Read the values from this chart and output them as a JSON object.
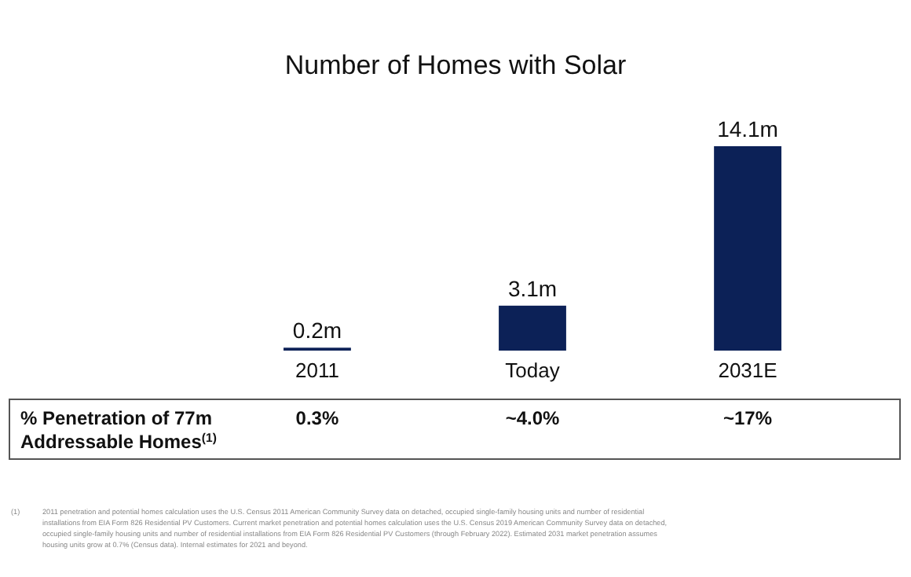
{
  "chart_data": {
    "type": "bar",
    "title": "Number of Homes with Solar",
    "categories": [
      "2011",
      "Today",
      "2031E"
    ],
    "values": [
      0.2,
      3.1,
      14.1
    ],
    "value_labels": [
      "0.2m",
      "3.1m",
      "14.1m"
    ],
    "color": "#0c2157",
    "annotations": [
      "% Penetration of 77m Addressable Homes$^{(1)}$",
      "0.3%",
      "~4.0%",
      "~17%",
      "(1)",
      "2011 penetration and potential homes calculation uses the U.S. Census 2011 American Community Survey data on detached, occupied single-family housing units and number of residential installations from EIA Form 826 Residential PV Customers. Current market penetration and potential homes calculation uses the U.S. Census 2019 American Community Survey data on detached, occupied single-family housing units and number of residential installations from EIA Form 826 Residential PV Customers (through February 2022). Estimated 2031 market penetration assumes housing units grow at 0.7% (Census data). Internal estimates for 2021 and beyond."
    ]
  }
}
